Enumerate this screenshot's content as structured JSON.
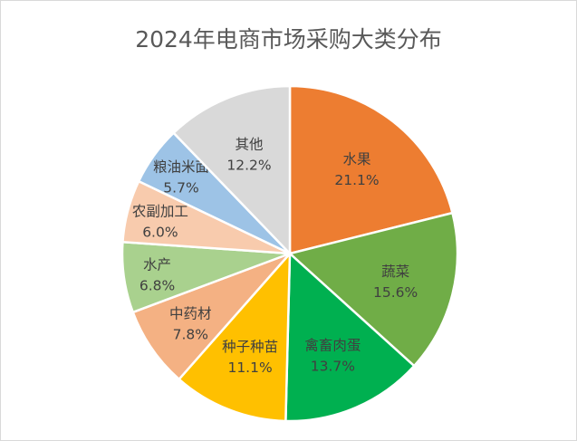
{
  "chart_data": {
    "type": "pie",
    "title": "2024年电商市场采购大类分布",
    "start_angle": "12 o'clock, clockwise",
    "slices": [
      {
        "label": "水果",
        "value": 21.1,
        "display": "21.1%",
        "color": "#ED7D31"
      },
      {
        "label": "蔬菜",
        "value": 15.6,
        "display": "15.6%",
        "color": "#70AD47"
      },
      {
        "label": "禽畜肉蛋",
        "value": 13.7,
        "display": "13.7%",
        "color": "#00B050"
      },
      {
        "label": "种子种苗",
        "value": 11.1,
        "display": "11.1%",
        "color": "#FFC000"
      },
      {
        "label": "中药材",
        "value": 7.8,
        "display": "7.8%",
        "color": "#F4B183"
      },
      {
        "label": "水产",
        "value": 6.8,
        "display": "6.8%",
        "color": "#A9D18E"
      },
      {
        "label": "农副加工",
        "value": 6.0,
        "display": "6.0%",
        "color": "#F8CBAD"
      },
      {
        "label": "粮油米面",
        "value": 5.7,
        "display": "5.7%",
        "color": "#9DC3E6"
      },
      {
        "label": "其他",
        "value": 12.2,
        "display": "12.2%",
        "color": "#D9D9D9"
      }
    ],
    "legend": "none"
  }
}
